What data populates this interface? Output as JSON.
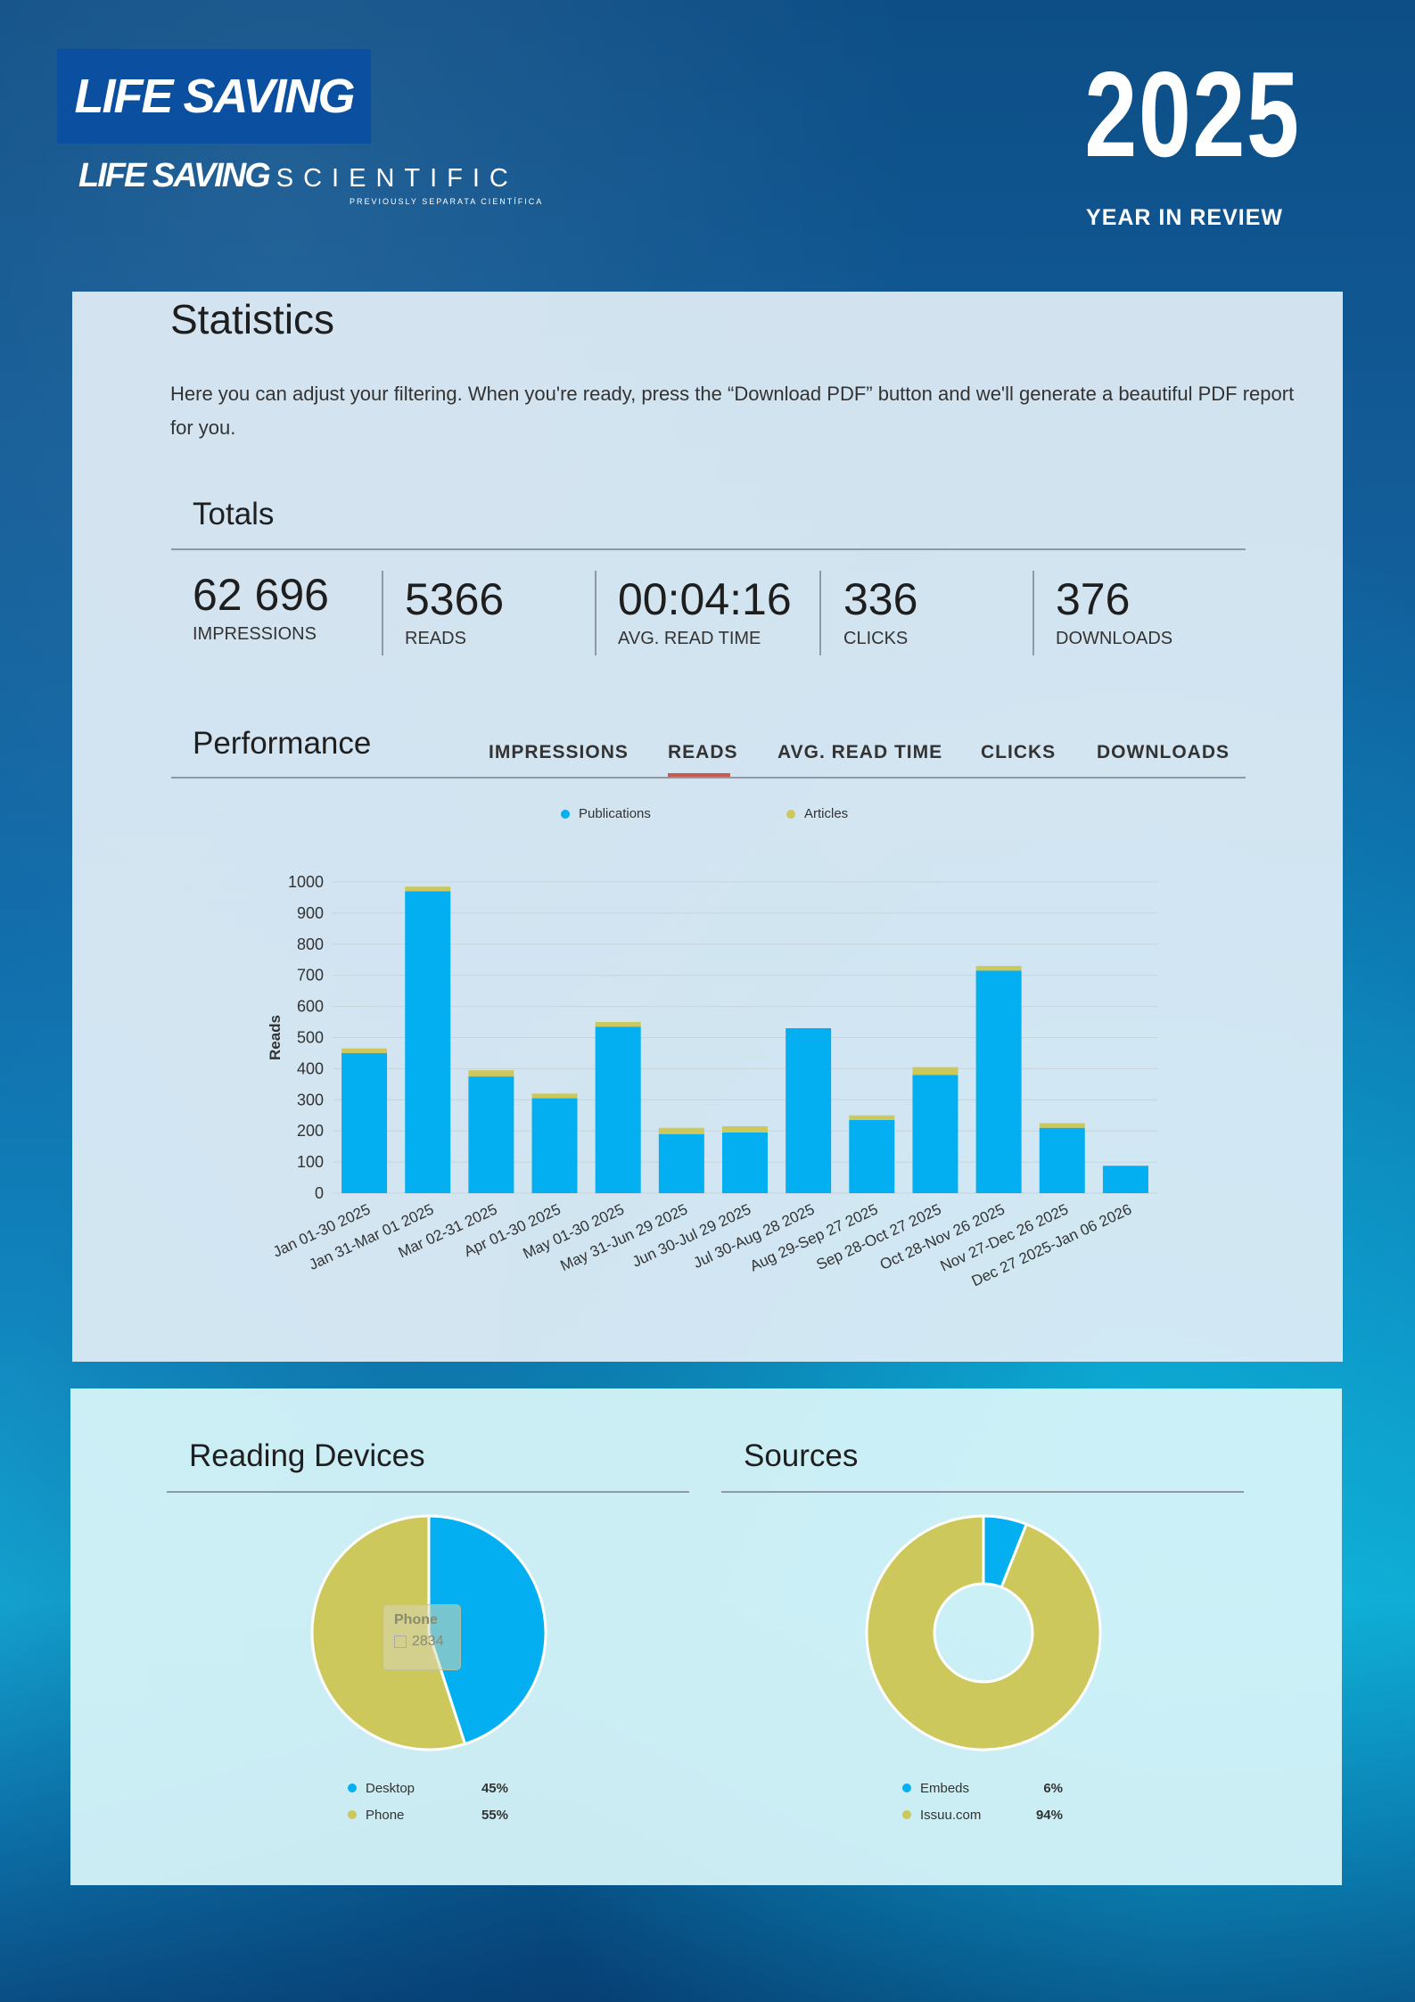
{
  "header": {
    "logo_main": "LIFE SAVING",
    "logo_sub_main": "LIFE SAVING",
    "logo_sub_scientific": "SCIENTIFIC",
    "logo_previously": "PREVIOUSLY SEPARATA CIENTÍFICA",
    "year": "2025",
    "year_review": "YEAR IN REVIEW"
  },
  "statistics": {
    "title": "Statistics",
    "description": "Here you can adjust your filtering. When you're ready, press the “Download PDF” button and we'll generate a beautiful PDF report for you."
  },
  "totals": {
    "title": "Totals",
    "items": [
      {
        "value": "62 696",
        "label": "IMPRESSIONS"
      },
      {
        "value": "5366",
        "label": "READS"
      },
      {
        "value": "00:04:16",
        "label": "AVG. READ TIME"
      },
      {
        "value": "336",
        "label": "CLICKS"
      },
      {
        "value": "376",
        "label": "DOWNLOADS"
      }
    ]
  },
  "performance": {
    "title": "Performance",
    "tabs": [
      "IMPRESSIONS",
      "READS",
      "AVG. READ TIME",
      "CLICKS",
      "DOWNLOADS"
    ],
    "active_tab": "READS",
    "legend": [
      "Publications",
      "Articles"
    ]
  },
  "colors": {
    "publications": "#03aff0",
    "articles": "#ccc85c",
    "active_tab": "#c85a4e"
  },
  "chart_data": [
    {
      "type": "bar",
      "stacked": true,
      "title": "",
      "xlabel": "",
      "ylabel": "Reads",
      "ylim": [
        0,
        1000
      ],
      "yticks": [
        0,
        100,
        200,
        300,
        400,
        500,
        600,
        700,
        800,
        900,
        1000
      ],
      "categories": [
        "Jan 01-30 2025",
        "Jan 31-Mar 01 2025",
        "Mar 02-31 2025",
        "Apr 01-30 2025",
        "May 01-30 2025",
        "May 31-Jun 29 2025",
        "Jun 30-Jul 29 2025",
        "Jul 30-Aug 28 2025",
        "Aug 29-Sep 27 2025",
        "Sep 28-Oct 27 2025",
        "Oct 28-Nov 26 2025",
        "Nov 27-Dec 26 2025",
        "Dec 27 2025-Jan 06 2026"
      ],
      "series": [
        {
          "name": "Publications",
          "values": [
            450,
            970,
            375,
            305,
            535,
            190,
            195,
            530,
            235,
            380,
            715,
            210,
            88
          ]
        },
        {
          "name": "Articles",
          "values": [
            15,
            15,
            20,
            15,
            15,
            20,
            20,
            0,
            15,
            25,
            15,
            15,
            0
          ]
        }
      ]
    },
    {
      "type": "pie",
      "title": "Reading Devices",
      "labels": [
        "Desktop",
        "Phone"
      ],
      "values": [
        45,
        55
      ],
      "percent_labels": [
        "45%",
        "55%"
      ],
      "tooltip": {
        "label": "Phone",
        "value": "2834"
      }
    },
    {
      "type": "pie",
      "donut": true,
      "title": "Sources",
      "labels": [
        "Embeds",
        "Issuu.com"
      ],
      "values": [
        6,
        94
      ],
      "percent_labels": [
        "6%",
        "94%"
      ]
    }
  ]
}
